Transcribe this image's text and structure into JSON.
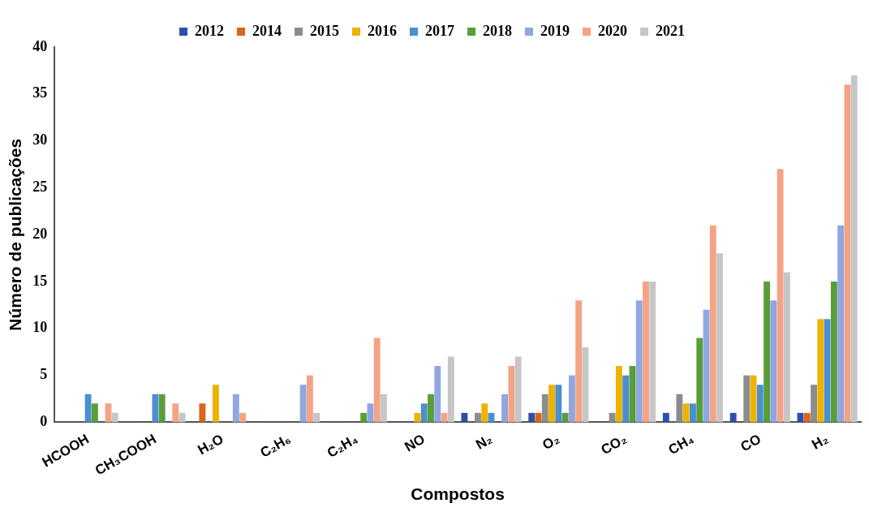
{
  "chart_data": {
    "type": "bar",
    "xlabel": "Compostos",
    "ylabel": "Número de publicações",
    "categories": [
      "HCOOH",
      "CH₃COOH",
      "H₂O",
      "C₂H₆",
      "C₂H₄",
      "NO",
      "N₂",
      "O₂",
      "CO₂",
      "CH₄",
      "CO",
      "H₂"
    ],
    "series": [
      {
        "name": "2012",
        "color": "#2e4fa8",
        "values": [
          0,
          0,
          0,
          0,
          0,
          0,
          1,
          1,
          0,
          1,
          1,
          1
        ]
      },
      {
        "name": "2014",
        "color": "#d9661a",
        "values": [
          0,
          0,
          2,
          0,
          0,
          0,
          0,
          1,
          0,
          0,
          0,
          1
        ]
      },
      {
        "name": "2015",
        "color": "#8c8c8c",
        "values": [
          0,
          0,
          0,
          0,
          0,
          0,
          1,
          3,
          1,
          3,
          5,
          4
        ]
      },
      {
        "name": "2016",
        "color": "#eeb200",
        "values": [
          0,
          0,
          4,
          0,
          0,
          1,
          2,
          4,
          6,
          2,
          5,
          11
        ]
      },
      {
        "name": "2017",
        "color": "#4a8fd0",
        "values": [
          3,
          3,
          0,
          0,
          0,
          2,
          1,
          4,
          5,
          2,
          4,
          11
        ]
      },
      {
        "name": "2018",
        "color": "#5a9e3a",
        "values": [
          2,
          3,
          0,
          0,
          1,
          3,
          0,
          1,
          6,
          9,
          15,
          15
        ]
      },
      {
        "name": "2019",
        "color": "#8fa6e0",
        "values": [
          0,
          0,
          3,
          4,
          2,
          6,
          3,
          5,
          13,
          12,
          13,
          21
        ]
      },
      {
        "name": "2020",
        "color": "#f4a384",
        "values": [
          2,
          2,
          1,
          5,
          9,
          1,
          6,
          13,
          15,
          21,
          27,
          36
        ]
      },
      {
        "name": "2021",
        "color": "#c6c6c6",
        "values": [
          1,
          1,
          0,
          1,
          3,
          7,
          7,
          8,
          15,
          18,
          16,
          37
        ]
      }
    ],
    "ylim": [
      0,
      40
    ],
    "yticks": [
      0,
      5,
      10,
      15,
      20,
      25,
      30,
      35,
      40
    ],
    "grid": false,
    "legend": "top"
  }
}
